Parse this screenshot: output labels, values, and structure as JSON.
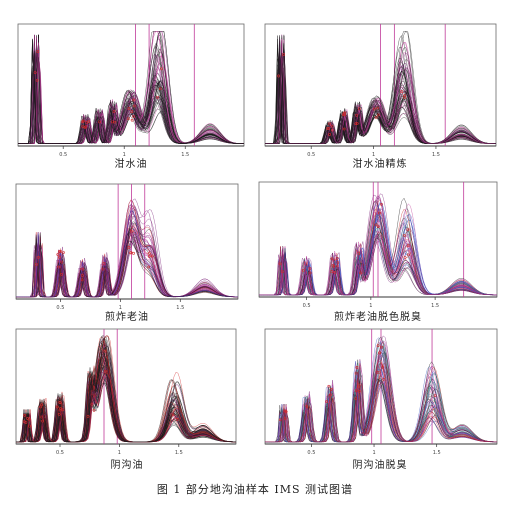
{
  "figure_caption": "图 1  部分地沟油样本 IMS 测试图谱",
  "chart_data": [
    {
      "type": "line",
      "title": "泔水油",
      "xtick_labels": [
        "0.5",
        "1",
        "1.5"
      ],
      "n_spectra": 60,
      "peaks": [
        0.08,
        0.3,
        0.36,
        0.42,
        0.5,
        0.62
      ],
      "peak_heights": [
        0.95,
        0.25,
        0.3,
        0.35,
        0.45,
        0.8
      ]
    },
    {
      "type": "line",
      "title": "泔水油精炼",
      "xtick_labels": [
        "0.5",
        "1",
        "1.5"
      ],
      "n_spectra": 60,
      "peaks": [
        0.07,
        0.28,
        0.34,
        0.4,
        0.48,
        0.6
      ],
      "peak_heights": [
        0.95,
        0.2,
        0.3,
        0.35,
        0.4,
        0.75
      ]
    },
    {
      "type": "line",
      "title": "煎炸老油",
      "xtick_labels": [
        "0.5",
        "1",
        "1.5"
      ],
      "n_spectra": 50,
      "peaks": [
        0.1,
        0.2,
        0.3,
        0.4,
        0.52,
        0.6
      ],
      "peak_heights": [
        0.6,
        0.45,
        0.35,
        0.4,
        0.85,
        0.55
      ]
    },
    {
      "type": "line",
      "title": "煎炸老油脱色脱臭",
      "xtick_labels": [
        "0.5",
        "1",
        "1.5"
      ],
      "n_spectra": 50,
      "peaks": [
        0.1,
        0.2,
        0.32,
        0.42,
        0.5,
        0.62
      ],
      "peak_heights": [
        0.45,
        0.35,
        0.4,
        0.45,
        0.9,
        0.7
      ]
    },
    {
      "type": "line",
      "title": "阴沟油",
      "xtick_labels": [
        "0.5",
        "1",
        "1.5"
      ],
      "n_spectra": 70,
      "peaks": [
        0.05,
        0.12,
        0.2,
        0.34,
        0.4,
        0.72
      ],
      "peak_heights": [
        0.3,
        0.4,
        0.45,
        0.5,
        0.98,
        0.45
      ]
    },
    {
      "type": "line",
      "title": "阴沟油脱臭",
      "xtick_labels": [
        "0.5",
        "1",
        "1.5"
      ],
      "n_spectra": 50,
      "peaks": [
        0.08,
        0.18,
        0.28,
        0.4,
        0.5,
        0.72
      ],
      "peak_heights": [
        0.35,
        0.45,
        0.55,
        0.75,
        0.95,
        0.55
      ]
    }
  ],
  "colors": {
    "dark": "#1a1a1a",
    "purple": "#7a1f78",
    "magenta": "#c03a9a",
    "red": "#d12a2a",
    "teal": "#2e9a92",
    "blue": "#3b58c5",
    "frame": "#6a6a6a"
  }
}
